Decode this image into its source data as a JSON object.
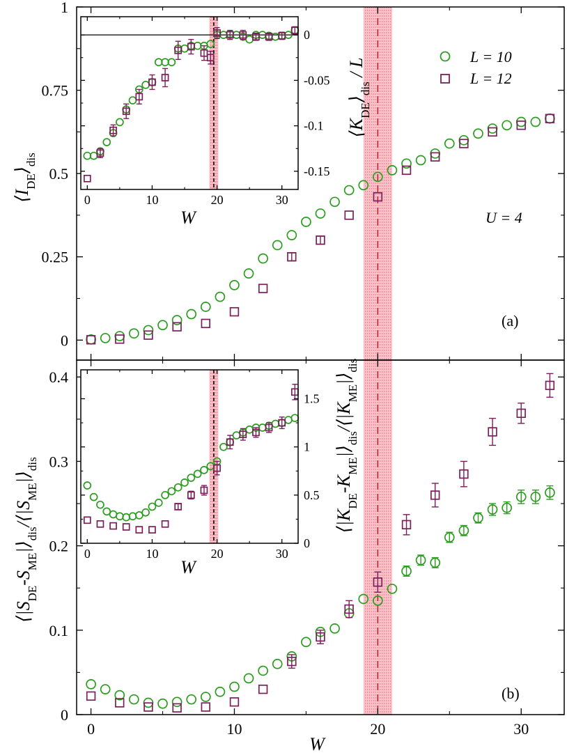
{
  "colors": {
    "L10": "#2a9d1e",
    "L12": "#7a1f5a",
    "band": "#e8203a",
    "critical": "#c0101e"
  },
  "legend": {
    "L10": "L = 10",
    "L12": "L = 12"
  },
  "annotations": {
    "U": "U = 4",
    "panel_a": "(a)",
    "panel_b": "(b)"
  },
  "labels": {
    "x": "W",
    "ya_main": "⟨I_DE⟩_dis",
    "ya_inset": "⟨K_DE⟩_dis / L",
    "yb_main": "⟨|S_DE-S_ME|⟩_dis/⟨|S_ME|⟩_dis",
    "yb_inset": "⟨|K_DE-K_ME|⟩_dis/⟨|K_ME|⟩_dis"
  },
  "chart_data": [
    {
      "id": "a-main",
      "type": "scatter",
      "xlim": [
        -1,
        33
      ],
      "ylim": [
        -0.06,
        1
      ],
      "xticks": [
        0,
        10,
        20,
        30
      ],
      "xtick_labels": [
        "0",
        "10",
        "20",
        "30"
      ],
      "yticks": [
        0,
        0.25,
        0.5,
        0.75,
        1
      ],
      "ytick_labels": [
        "0",
        "0.25",
        "0.5",
        "0.75",
        "1"
      ],
      "show_x_labels": false,
      "band": [
        19,
        21
      ],
      "vline": 20,
      "series": [
        {
          "name": "L = 10",
          "marker": "circle",
          "x": [
            0,
            1,
            2,
            3,
            4,
            5,
            6,
            7,
            8,
            9,
            10,
            11,
            12,
            13,
            14,
            15,
            16,
            17,
            18,
            19,
            20,
            21,
            22,
            23,
            24,
            25,
            26,
            27,
            28,
            29,
            30,
            31,
            32
          ],
          "y": [
            0.002,
            0.006,
            0.012,
            0.02,
            0.03,
            0.045,
            0.06,
            0.078,
            0.1,
            0.13,
            0.165,
            0.2,
            0.245,
            0.285,
            0.315,
            0.355,
            0.38,
            0.415,
            0.45,
            0.465,
            0.49,
            0.51,
            0.53,
            0.54,
            0.56,
            0.59,
            0.6,
            0.62,
            0.635,
            0.645,
            0.655,
            0.655,
            0.665
          ]
        },
        {
          "name": "L = 12",
          "marker": "square",
          "x": [
            0,
            2,
            4,
            6,
            8,
            10,
            12,
            14,
            16,
            18,
            20,
            22,
            24,
            26,
            28,
            30,
            32
          ],
          "y": [
            0.001,
            0.003,
            0.015,
            0.04,
            0.05,
            0.085,
            0.155,
            0.25,
            0.3,
            0.375,
            0.43,
            0.51,
            0.55,
            0.59,
            0.625,
            0.645,
            0.665
          ],
          "err": [
            0,
            0,
            0,
            0,
            0,
            0,
            0,
            0.012,
            0.012,
            0,
            0,
            0,
            0,
            0,
            0,
            0,
            0
          ]
        }
      ]
    },
    {
      "id": "a-inset",
      "type": "scatter",
      "xlim": [
        -1,
        32.5
      ],
      "ylim": [
        -0.17,
        0.02
      ],
      "xticks": [
        0,
        10,
        20,
        30
      ],
      "xtick_labels": [
        "0",
        "10",
        "20",
        "30"
      ],
      "yticks": [
        0,
        -0.05,
        -0.1,
        -0.15
      ],
      "ytick_labels": [
        "0",
        "-0.05",
        "-0.1",
        "-0.15"
      ],
      "band": [
        18.8,
        20.2
      ],
      "vline": 19.5,
      "hline": 0,
      "series": [
        {
          "name": "L = 10",
          "marker": "circle",
          "x": [
            0,
            1,
            2,
            3,
            4,
            5,
            6,
            7,
            8,
            9,
            10,
            11,
            12,
            13,
            14,
            15,
            16,
            17,
            18,
            19,
            20,
            21,
            22,
            23,
            24,
            25,
            26,
            27,
            28,
            29,
            30,
            31,
            32
          ],
          "y": [
            -0.133,
            -0.133,
            -0.128,
            -0.118,
            -0.108,
            -0.096,
            -0.082,
            -0.072,
            -0.06,
            -0.055,
            -0.052,
            -0.03,
            -0.03,
            -0.03,
            -0.015,
            -0.015,
            -0.012,
            -0.012,
            -0.012,
            -0.01,
            0,
            0,
            0.001,
            0,
            -0.002,
            -0.005,
            0,
            0,
            -0.001,
            -0.002,
            -0.001,
            0,
            0.005
          ]
        },
        {
          "name": "L = 12",
          "marker": "square",
          "x": [
            0,
            2,
            4,
            6,
            8,
            10,
            12,
            14,
            16,
            18,
            19,
            20,
            22,
            24,
            26,
            28,
            30,
            32
          ],
          "y": [
            -0.158,
            -0.13,
            -0.105,
            -0.084,
            -0.068,
            -0.052,
            -0.047,
            -0.017,
            -0.013,
            -0.02,
            -0.025,
            0.002,
            0,
            0,
            -0.002,
            -0.002,
            -0.001,
            0.005
          ],
          "err": [
            0,
            0.005,
            0.006,
            0.008,
            0.008,
            0.008,
            0.01,
            0.01,
            0.008,
            0.008,
            0.007,
            0.006,
            0.005,
            0.005,
            0.004,
            0.004,
            0.004,
            0.004
          ]
        }
      ]
    },
    {
      "id": "b-main",
      "type": "scatter",
      "xlim": [
        -1,
        33
      ],
      "ylim": [
        0,
        0.42
      ],
      "xticks": [
        0,
        10,
        20,
        30
      ],
      "xtick_labels": [
        "0",
        "10",
        "20",
        "30"
      ],
      "yticks": [
        0,
        0.1,
        0.2,
        0.3,
        0.4
      ],
      "ytick_labels": [
        "0",
        "0.1",
        "0.2",
        "0.3",
        "0.4"
      ],
      "show_x_labels": true,
      "band": [
        19,
        21
      ],
      "vline": 20,
      "series": [
        {
          "name": "L = 10",
          "marker": "circle",
          "x": [
            0,
            1,
            2,
            3,
            4,
            5,
            6,
            7,
            8,
            9,
            10,
            11,
            12,
            13,
            14,
            15,
            16,
            17,
            18,
            19,
            20,
            21,
            22,
            23,
            24,
            25,
            26,
            27,
            28,
            29,
            30,
            31,
            32
          ],
          "y": [
            0.036,
            0.03,
            0.023,
            0.018,
            0.014,
            0.013,
            0.015,
            0.018,
            0.021,
            0.027,
            0.033,
            0.043,
            0.052,
            0.06,
            0.069,
            0.086,
            0.098,
            0.102,
            0.12,
            0.137,
            0.135,
            0.149,
            0.17,
            0.183,
            0.18,
            0.21,
            0.218,
            0.233,
            0.243,
            0.245,
            0.258,
            0.258,
            0.263
          ],
          "err": [
            0,
            0,
            0,
            0,
            0,
            0,
            0,
            0,
            0,
            0,
            0,
            0,
            0,
            0,
            0,
            0,
            0,
            0,
            0,
            0,
            0,
            0,
            0.006,
            0.006,
            0.006,
            0.006,
            0.006,
            0.006,
            0.007,
            0.007,
            0.008,
            0.008,
            0.008
          ]
        },
        {
          "name": "L = 12",
          "marker": "square",
          "x": [
            0,
            2,
            4,
            6,
            8,
            10,
            12,
            14,
            16,
            18,
            20,
            22,
            24,
            26,
            28,
            30,
            32
          ],
          "y": [
            0.022,
            0.014,
            0.009,
            0.008,
            0.009,
            0.015,
            0.03,
            0.063,
            0.092,
            0.125,
            0.157,
            0.225,
            0.26,
            0.285,
            0.335,
            0.357,
            0.39
          ],
          "err": [
            0,
            0,
            0,
            0,
            0,
            0,
            0,
            0.008,
            0.008,
            0.01,
            0.012,
            0.012,
            0.014,
            0.015,
            0.016,
            0.012,
            0.014
          ]
        }
      ]
    },
    {
      "id": "b-inset",
      "type": "scatter",
      "xlim": [
        -1,
        32.5
      ],
      "ylim": [
        0,
        1.8
      ],
      "xticks": [
        0,
        10,
        20,
        30
      ],
      "xtick_labels": [
        "0",
        "10",
        "20",
        "30"
      ],
      "yticks": [
        0,
        0.5,
        1,
        1.5
      ],
      "ytick_labels": [
        "0",
        "0.5",
        "1",
        "1.5"
      ],
      "band": [
        18.8,
        20.2
      ],
      "vline": 19.5,
      "series": [
        {
          "name": "L = 10",
          "marker": "circle",
          "x": [
            0,
            1,
            2,
            3,
            4,
            5,
            6,
            7,
            8,
            9,
            10,
            11,
            12,
            13,
            14,
            15,
            16,
            17,
            18,
            19,
            20,
            21,
            22,
            23,
            24,
            25,
            26,
            27,
            28,
            29,
            30,
            31,
            32
          ],
          "y": [
            0.6,
            0.48,
            0.4,
            0.33,
            0.3,
            0.28,
            0.27,
            0.28,
            0.29,
            0.32,
            0.38,
            0.42,
            0.5,
            0.54,
            0.58,
            0.63,
            0.68,
            0.72,
            0.76,
            0.8,
            0.85,
            1,
            1.05,
            1.12,
            1.15,
            1.18,
            1.2,
            1.2,
            1.22,
            1.24,
            1.25,
            1.28,
            1.3
          ]
        },
        {
          "name": "L = 12",
          "marker": "square",
          "x": [
            0,
            2,
            4,
            6,
            8,
            10,
            12,
            14,
            16,
            18,
            20,
            22,
            24,
            26,
            28,
            30,
            32
          ],
          "y": [
            0.24,
            0.2,
            0.18,
            0.17,
            0.14,
            0.14,
            0.2,
            0.38,
            0.5,
            0.55,
            0.78,
            1.05,
            1.13,
            1.15,
            1.2,
            1.25,
            1.57
          ],
          "err": [
            0,
            0,
            0,
            0,
            0,
            0,
            0,
            0.03,
            0.04,
            0.05,
            0.07,
            0.07,
            0.06,
            0.05,
            0.05,
            0.06,
            0.08
          ]
        }
      ]
    }
  ]
}
